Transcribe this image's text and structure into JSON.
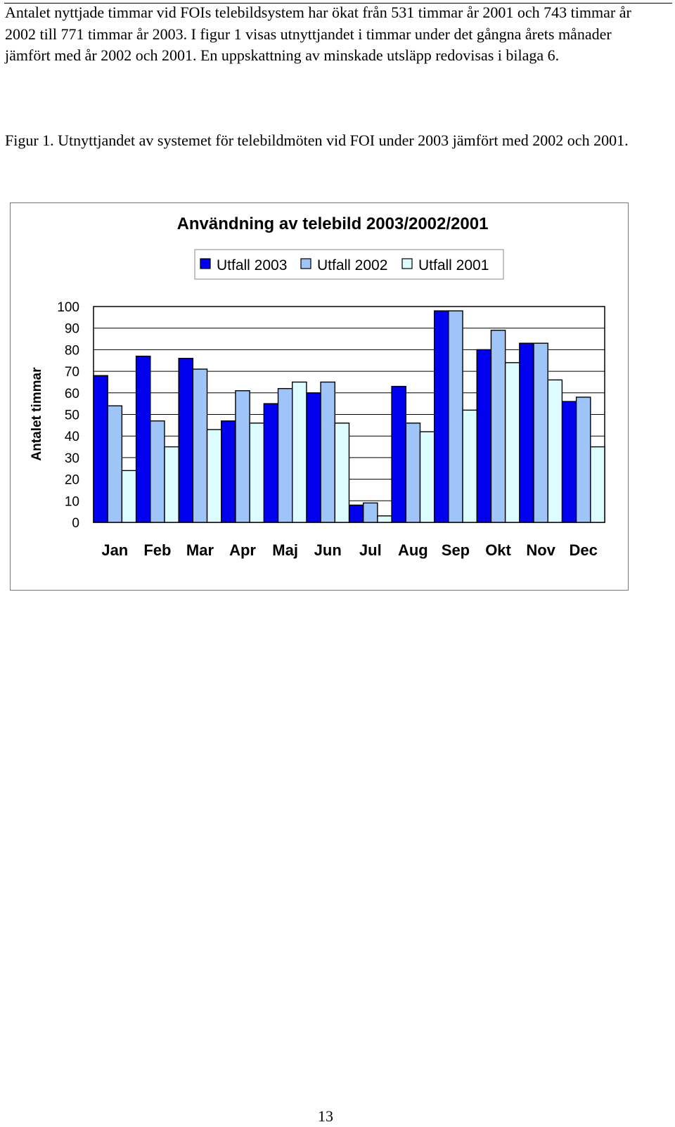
{
  "document": {
    "paragraph": "Antalet nyttjade timmar vid FOIs telebildsystem har ökat från 531 timmar år 2001 och 743 timmar år 2002 till 771 timmar år 2003. I figur 1 visas utnyttjandet i timmar under det gångna årets månader jämfört med år 2002 och 2001. En uppskattning av minskade utsläpp redovisas i bilaga 6.",
    "figure_caption": "Figur 1. Utnyttjandet av systemet för telebildmöten vid FOI under 2003 jämfört med 2002 och 2001.",
    "page_number": "13"
  },
  "chart_data": {
    "type": "bar",
    "title": "Användning av telebild 2003/2002/2001",
    "xlabel": "",
    "ylabel": "Antalet timmar",
    "ylim": [
      0,
      100
    ],
    "yticks": [
      0,
      10,
      20,
      30,
      40,
      50,
      60,
      70,
      80,
      90,
      100
    ],
    "grid": true,
    "legend_position": "top",
    "categories": [
      "Jan",
      "Feb",
      "Mar",
      "Apr",
      "Maj",
      "Jun",
      "Jul",
      "Aug",
      "Sep",
      "Okt",
      "Nov",
      "Dec"
    ],
    "series": [
      {
        "name": "Utfall 2003",
        "color": "#0000EE",
        "values": [
          68,
          77,
          76,
          47,
          55,
          60,
          8,
          63,
          98,
          80,
          83,
          56
        ]
      },
      {
        "name": "Utfall 2002",
        "color": "#9FC5F8",
        "values": [
          54,
          47,
          71,
          61,
          62,
          65,
          9,
          46,
          98,
          89,
          83,
          58
        ]
      },
      {
        "name": "Utfall 2001",
        "color": "#DDFCFF",
        "values": [
          24,
          35,
          43,
          46,
          65,
          46,
          3,
          42,
          52,
          74,
          66,
          35
        ]
      }
    ]
  }
}
